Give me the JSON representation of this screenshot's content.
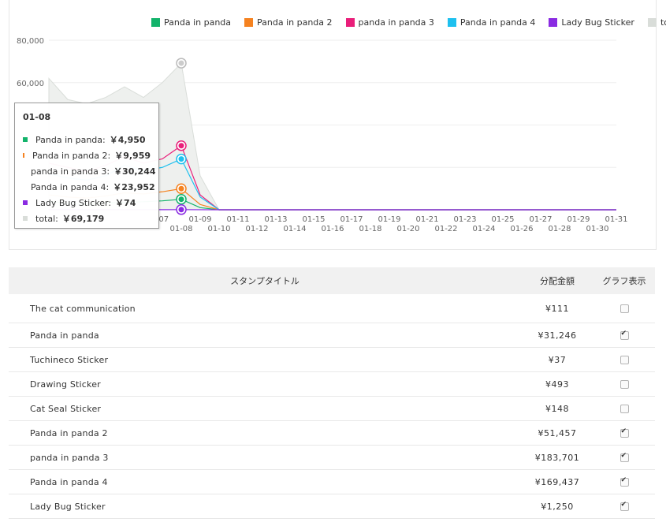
{
  "chart_data": {
    "type": "line",
    "y_ticks": [
      "80,000",
      "60,000"
    ],
    "ylim": [
      0,
      80000
    ],
    "x_ticks_top": [
      "-07",
      "01-09",
      "01-11",
      "01-13",
      "01-15",
      "01-17",
      "01-19",
      "01-21",
      "01-23",
      "01-25",
      "01-27",
      "01-29",
      "01-31"
    ],
    "x_ticks_bottom": [
      "01-08",
      "01-10",
      "01-12",
      "01-14",
      "01-16",
      "01-18",
      "01-20",
      "01-22",
      "01-24",
      "01-26",
      "01-28",
      "01-30"
    ],
    "x": [
      "01-01",
      "01-02",
      "01-03",
      "01-04",
      "01-05",
      "01-06",
      "01-07",
      "01-08",
      "01-09",
      "01-10",
      "01-11",
      "01-12",
      "01-13",
      "01-14",
      "01-15",
      "01-16",
      "01-17",
      "01-18",
      "01-19",
      "01-20",
      "01-21",
      "01-22",
      "01-23",
      "01-24",
      "01-25",
      "01-26",
      "01-27",
      "01-28",
      "01-29",
      "01-30",
      "01-31"
    ],
    "legend_placement": "top",
    "series": [
      {
        "name": "Panda in panda",
        "color": "#13b36b",
        "values": [
          4000,
          3000,
          2500,
          3200,
          3500,
          3800,
          4200,
          4950,
          1000,
          0,
          0,
          0,
          0,
          0,
          0,
          0,
          0,
          0,
          0,
          0,
          0,
          0,
          0,
          0,
          0,
          0,
          0,
          0,
          0,
          0,
          0
        ]
      },
      {
        "name": "Panda in panda 2",
        "color": "#f58220",
        "values": [
          7000,
          6000,
          5500,
          6500,
          8000,
          7500,
          8500,
          9959,
          2500,
          0,
          0,
          0,
          0,
          0,
          0,
          0,
          0,
          0,
          0,
          0,
          0,
          0,
          0,
          0,
          0,
          0,
          0,
          0,
          0,
          0,
          0
        ]
      },
      {
        "name": "panda in panda 3",
        "color": "#e91e7a",
        "values": [
          22000,
          20000,
          18000,
          21000,
          25000,
          22000,
          24000,
          30244,
          7000,
          0,
          0,
          0,
          0,
          0,
          0,
          0,
          0,
          0,
          0,
          0,
          0,
          0,
          0,
          0,
          0,
          0,
          0,
          0,
          0,
          0,
          0
        ]
      },
      {
        "name": "Panda in panda 4",
        "color": "#1ec0ef",
        "values": [
          17000,
          15000,
          14000,
          16000,
          21000,
          18500,
          20000,
          23952,
          6000,
          0,
          0,
          0,
          0,
          0,
          0,
          0,
          0,
          0,
          0,
          0,
          0,
          0,
          0,
          0,
          0,
          0,
          0,
          0,
          0,
          0,
          0
        ]
      },
      {
        "name": "Lady Bug Sticker",
        "color": "#8a2be2",
        "values": [
          100,
          80,
          60,
          90,
          80,
          70,
          60,
          74,
          20,
          0,
          0,
          0,
          0,
          0,
          0,
          0,
          0,
          0,
          0,
          0,
          0,
          0,
          0,
          0,
          0,
          0,
          0,
          0,
          0,
          0,
          0
        ]
      },
      {
        "name": "total",
        "color": "#d9ddd9",
        "values": [
          62000,
          52000,
          50000,
          53000,
          58000,
          53000,
          60000,
          69179,
          16000,
          0,
          0,
          0,
          0,
          0,
          0,
          0,
          0,
          0,
          0,
          0,
          0,
          0,
          0,
          0,
          0,
          0,
          0,
          0,
          0,
          0,
          0
        ]
      }
    ]
  },
  "tooltip": {
    "date": "01-08",
    "rows": [
      {
        "label": "Panda in panda:",
        "value": "￥4,950",
        "color": "#13b36b"
      },
      {
        "label": "Panda in panda 2:",
        "value": "￥9,959",
        "color": "#f58220"
      },
      {
        "label": "panda in panda 3:",
        "value": "￥30,244",
        "color": "#e91e7a"
      },
      {
        "label": "Panda in panda 4:",
        "value": "￥23,952",
        "color": "#1ec0ef"
      },
      {
        "label": "Lady Bug Sticker:",
        "value": "￥74",
        "color": "#8a2be2"
      },
      {
        "label": "total:",
        "value": "￥69,179",
        "color": "#d9ddd9"
      }
    ]
  },
  "table": {
    "headers": {
      "title": "スタンプタイトル",
      "amount": "分配金額",
      "graph": "グラフ表示"
    },
    "rows": [
      {
        "title": "The cat communication",
        "amount": "¥111",
        "checked": false
      },
      {
        "title": "Panda in panda",
        "amount": "¥31,246",
        "checked": true
      },
      {
        "title": "Tuchineco Sticker",
        "amount": "¥37",
        "checked": false
      },
      {
        "title": "Drawing Sticker",
        "amount": "¥493",
        "checked": false
      },
      {
        "title": "Cat Seal Sticker",
        "amount": "¥148",
        "checked": false
      },
      {
        "title": "Panda in panda 2",
        "amount": "¥51,457",
        "checked": true
      },
      {
        "title": "panda in panda 3",
        "amount": "¥183,701",
        "checked": true
      },
      {
        "title": "Panda in panda 4",
        "amount": "¥169,437",
        "checked": true
      },
      {
        "title": "Lady Bug Sticker",
        "amount": "¥1,250",
        "checked": true
      }
    ]
  }
}
